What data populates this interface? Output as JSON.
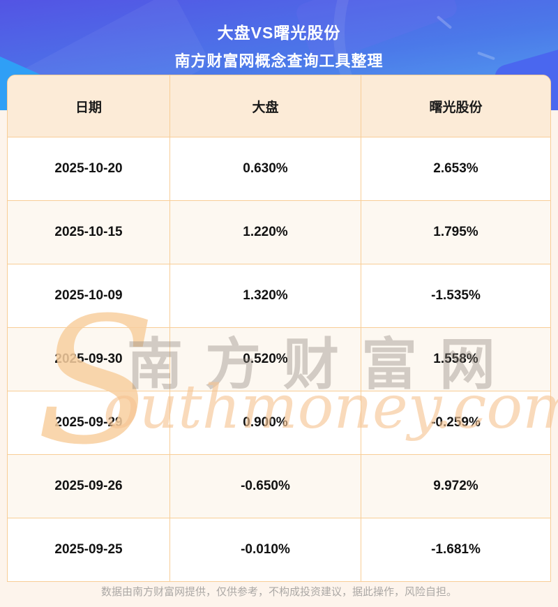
{
  "hero": {
    "title": "大盘VS曙光股份",
    "subtitle": "南方财富网概念查询工具整理"
  },
  "table": {
    "columns": [
      "日期",
      "大盘",
      "曙光股份"
    ],
    "rows": [
      {
        "date": "2025-10-20",
        "market": "0.630%",
        "stock": "2.653%"
      },
      {
        "date": "2025-10-15",
        "market": "1.220%",
        "stock": "1.795%"
      },
      {
        "date": "2025-10-09",
        "market": "1.320%",
        "stock": "-1.535%"
      },
      {
        "date": "2025-09-30",
        "market": "0.520%",
        "stock": "1.558%"
      },
      {
        "date": "2025-09-29",
        "market": "0.900%",
        "stock": "-0.259%"
      },
      {
        "date": "2025-09-26",
        "market": "-0.650%",
        "stock": "9.972%"
      },
      {
        "date": "2025-09-25",
        "market": "-0.010%",
        "stock": "-1.681%"
      }
    ]
  },
  "watermark": {
    "initial": "S",
    "cn": "南方财富网",
    "en": "outhmoney.com"
  },
  "footer": {
    "disclaimer": "数据由南方财富网提供，仅供参考，不构成投资建议，据此操作，风险自担。"
  },
  "colors": {
    "hero_gradient_top": "#5354e4",
    "hero_gradient_bottom": "#55a5f0",
    "table_border": "#f8cd96",
    "header_row_bg": "#fcebd7",
    "alt_row_bg": "#fdf8f1",
    "page_bg": "#fdf4ec",
    "watermark_orange": "#f6c493"
  }
}
